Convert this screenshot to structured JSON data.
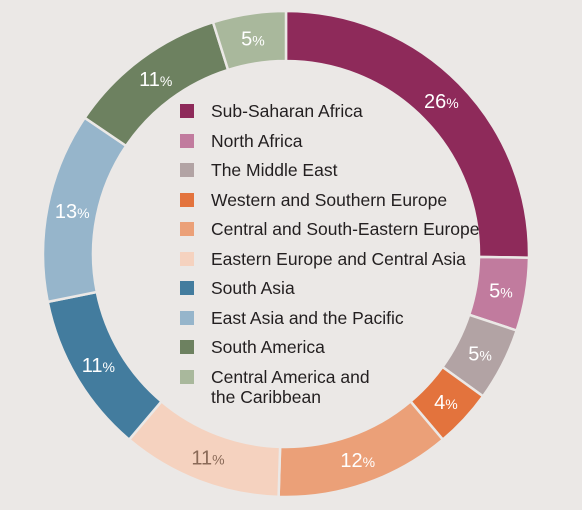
{
  "chart_data": {
    "type": "pie",
    "variant": "donut",
    "legend_position": "center",
    "slices": [
      {
        "label": "Sub-Saharan Africa",
        "value": 26,
        "color": "#8e2a5a"
      },
      {
        "label": "North Africa",
        "value": 5,
        "color": "#c17b9e"
      },
      {
        "label": "The Middle East",
        "value": 5,
        "color": "#b2a3a4"
      },
      {
        "label": "Western and Southern Europe",
        "value": 4,
        "color": "#e3733d"
      },
      {
        "label": "Central and South-Eastern Europe",
        "value": 12,
        "color": "#eba078"
      },
      {
        "label": "Eastern Europe and Central Asia",
        "value": 11,
        "color": "#f5d2bf"
      },
      {
        "label": "South Asia",
        "value": 11,
        "color": "#437c9e"
      },
      {
        "label": "East Asia and the Pacific",
        "value": 13,
        "color": "#96b5cb"
      },
      {
        "label": "South America",
        "value": 11,
        "color": "#6d8160"
      },
      {
        "label": "Central America and\nthe Caribbean",
        "value": 5,
        "color": "#a9b89c"
      }
    ],
    "value_suffix": "%"
  }
}
